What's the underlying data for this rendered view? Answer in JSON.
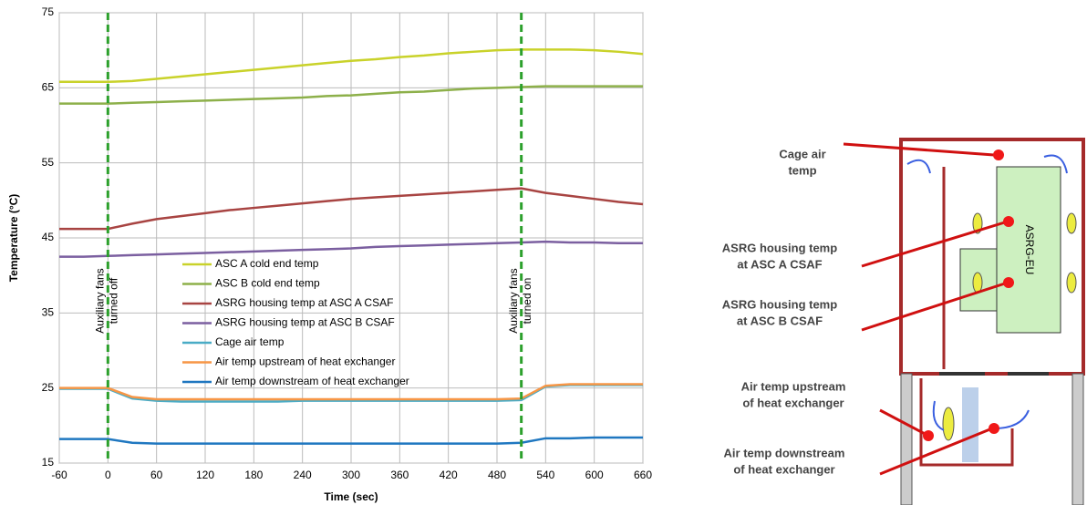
{
  "chart_data": {
    "type": "line",
    "xlabel": "Time (sec)",
    "ylabel": "Temperature (°C)",
    "x": [
      -60,
      -30,
      0,
      30,
      60,
      90,
      120,
      150,
      180,
      210,
      240,
      270,
      300,
      330,
      360,
      390,
      420,
      450,
      480,
      510,
      540,
      570,
      600,
      630,
      660
    ],
    "series": [
      {
        "name": "ASC A cold end temp",
        "color": "#c9d22a",
        "values": [
          65.8,
          65.8,
          65.8,
          65.9,
          66.2,
          66.5,
          66.8,
          67.1,
          67.4,
          67.7,
          68.0,
          68.3,
          68.6,
          68.8,
          69.1,
          69.3,
          69.6,
          69.8,
          70.0,
          70.1,
          70.1,
          70.1,
          70.0,
          69.8,
          69.5
        ]
      },
      {
        "name": "ASC B cold end temp",
        "color": "#8db04a",
        "values": [
          62.9,
          62.9,
          62.9,
          63.0,
          63.1,
          63.2,
          63.3,
          63.4,
          63.5,
          63.6,
          63.7,
          63.9,
          64.0,
          64.2,
          64.4,
          64.5,
          64.7,
          64.9,
          65.0,
          65.1,
          65.2,
          65.2,
          65.2,
          65.2,
          65.2
        ]
      },
      {
        "name": "ASRG housing temp at ASC A CSAF",
        "color": "#a84442",
        "values": [
          46.2,
          46.2,
          46.2,
          46.9,
          47.5,
          47.9,
          48.3,
          48.7,
          49.0,
          49.3,
          49.6,
          49.9,
          50.2,
          50.4,
          50.6,
          50.8,
          51.0,
          51.2,
          51.4,
          51.6,
          51.0,
          50.6,
          50.2,
          49.8,
          49.5
        ]
      },
      {
        "name": "ASRG housing temp at ASC B CSAF",
        "color": "#7b5fa0",
        "values": [
          42.5,
          42.5,
          42.6,
          42.7,
          42.8,
          42.9,
          43.0,
          43.1,
          43.2,
          43.3,
          43.4,
          43.5,
          43.6,
          43.8,
          43.9,
          44.0,
          44.1,
          44.2,
          44.3,
          44.4,
          44.5,
          44.4,
          44.4,
          44.3,
          44.3
        ]
      },
      {
        "name": "Cage air temp",
        "color": "#4aacc6",
        "values": [
          24.9,
          24.9,
          24.9,
          23.6,
          23.3,
          23.2,
          23.2,
          23.2,
          23.2,
          23.2,
          23.3,
          23.3,
          23.3,
          23.3,
          23.3,
          23.3,
          23.3,
          23.3,
          23.3,
          23.4,
          25.2,
          25.4,
          25.4,
          25.4,
          25.4
        ]
      },
      {
        "name": "Air temp upstream of heat exchanger",
        "color": "#f79646",
        "values": [
          25.0,
          25.0,
          25.0,
          23.8,
          23.5,
          23.5,
          23.5,
          23.5,
          23.5,
          23.5,
          23.5,
          23.5,
          23.5,
          23.5,
          23.5,
          23.5,
          23.5,
          23.5,
          23.5,
          23.6,
          25.3,
          25.5,
          25.5,
          25.5,
          25.5
        ]
      },
      {
        "name": "Air temp downstream of heat exchanger",
        "color": "#1f77c0",
        "values": [
          18.2,
          18.2,
          18.2,
          17.7,
          17.6,
          17.6,
          17.6,
          17.6,
          17.6,
          17.6,
          17.6,
          17.6,
          17.6,
          17.6,
          17.6,
          17.6,
          17.6,
          17.6,
          17.6,
          17.7,
          18.3,
          18.3,
          18.4,
          18.4,
          18.4
        ]
      }
    ],
    "xlim": [
      -60,
      660
    ],
    "xticks": [
      -60,
      0,
      60,
      120,
      180,
      240,
      300,
      360,
      420,
      480,
      540,
      600,
      660
    ],
    "ylim": [
      15,
      75
    ],
    "yticks": [
      15,
      25,
      35,
      45,
      55,
      65,
      75
    ],
    "grid": true,
    "legend": "center",
    "annotations": [
      {
        "x": 0,
        "color": "#2ca02c",
        "lines": [
          "Auxiliary fans",
          "turned off"
        ]
      },
      {
        "x": 510,
        "color": "#2ca02c",
        "lines": [
          "Auxiliary fans",
          "turned on"
        ]
      }
    ]
  },
  "diagram": {
    "labels": [
      {
        "lines": [
          "Cage air",
          "temp"
        ]
      },
      {
        "lines": [
          "ASRG housing temp",
          "at ASC A CSAF"
        ]
      },
      {
        "lines": [
          "ASRG housing temp",
          "at ASC B CSAF"
        ]
      },
      {
        "lines": [
          "Air temp upstream",
          "of heat exchanger"
        ]
      },
      {
        "lines": [
          "Air temp downstream",
          "of heat exchanger"
        ]
      }
    ],
    "unit": "ASRG-EU"
  }
}
